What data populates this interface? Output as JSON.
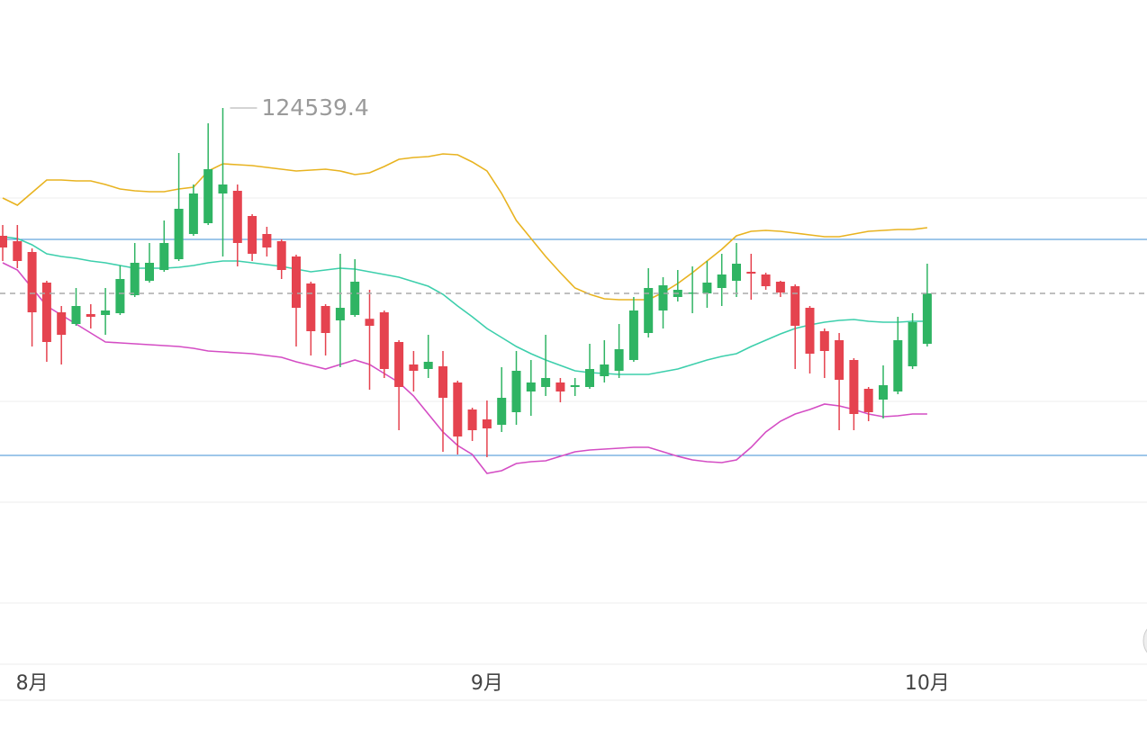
{
  "chart_data": {
    "type": "candlestick",
    "categories": [
      null,
      null,
      "8月",
      null,
      null,
      null,
      null,
      null,
      null,
      null,
      null,
      null,
      null,
      null,
      null,
      null,
      null,
      null,
      null,
      null,
      null,
      null,
      null,
      null,
      null,
      null,
      null,
      null,
      null,
      null,
      null,
      null,
      null,
      "9月",
      null,
      null,
      null,
      null,
      null,
      null,
      null,
      null,
      null,
      null,
      null,
      null,
      null,
      null,
      null,
      null,
      null,
      null,
      null,
      null,
      null,
      null,
      null,
      null,
      null,
      null,
      null,
      null,
      null,
      "10月"
    ],
    "open": [
      118150,
      117880,
      117340,
      115810,
      114325,
      113740,
      114235,
      114190,
      114280,
      115180,
      115900,
      116440,
      116980,
      118240,
      118780,
      120265,
      120400,
      119140,
      118240,
      117880,
      117115,
      115765,
      114640,
      113920,
      114190,
      114000,
      114325,
      112840,
      111715,
      111490,
      111625,
      110815,
      109465,
      108970,
      108700,
      109330,
      110365,
      110590,
      110815,
      110590,
      110590,
      111130,
      111400,
      111940,
      113290,
      114415,
      115090,
      115270,
      115270,
      115540,
      115900,
      116350,
      116215,
      115855,
      115630,
      114550,
      113380,
      112930,
      111940,
      110500,
      109960,
      110365,
      111625,
      112750
    ],
    "high": [
      118690,
      118690,
      117520,
      115900,
      114640,
      115540,
      114730,
      115540,
      116665,
      117790,
      117790,
      118915,
      122290,
      120715,
      123775,
      124539.4,
      120715,
      119230,
      118600,
      117970,
      117205,
      115855,
      114730,
      117250,
      116980,
      115450,
      114415,
      112930,
      112390,
      113200,
      112390,
      110905,
      109555,
      109915,
      111580,
      112390,
      111940,
      113200,
      111040,
      111040,
      112750,
      112930,
      113740,
      115090,
      116530,
      116080,
      116440,
      116620,
      116890,
      117250,
      117790,
      117250,
      116305,
      115900,
      115720,
      114640,
      113515,
      113290,
      112030,
      110590,
      111670,
      114100,
      114280,
      116755
    ],
    "low": [
      116890,
      116530,
      112615,
      111850,
      111715,
      113650,
      113515,
      113200,
      114190,
      115090,
      115810,
      116350,
      116890,
      118150,
      118690,
      117115,
      116620,
      116890,
      117115,
      115990,
      112615,
      112165,
      112165,
      111580,
      114100,
      110455,
      111040,
      108430,
      110365,
      111040,
      107350,
      107215,
      107890,
      107080,
      108340,
      108700,
      109150,
      110140,
      109825,
      110140,
      110500,
      110815,
      111040,
      111850,
      113065,
      113515,
      114865,
      114280,
      114550,
      114640,
      115090,
      114955,
      115450,
      115090,
      111490,
      111265,
      111040,
      108430,
      108430,
      108880,
      109015,
      110230,
      111490,
      112615
    ],
    "close": [
      117565,
      116890,
      114325,
      112840,
      113200,
      114640,
      114100,
      114415,
      115990,
      116800,
      116800,
      117790,
      119500,
      120265,
      121480,
      120715,
      117790,
      117250,
      117565,
      116440,
      114550,
      113380,
      113290,
      114550,
      115855,
      113650,
      111490,
      110590,
      111400,
      111850,
      110050,
      108115,
      108430,
      108520,
      110050,
      111400,
      110815,
      111040,
      110365,
      110680,
      111490,
      111715,
      112480,
      114415,
      115540,
      115675,
      115450,
      115315,
      115810,
      116215,
      116755,
      116260,
      115630,
      115315,
      113650,
      112255,
      112390,
      110950,
      109240,
      109330,
      110680,
      112930,
      113830,
      115270
    ],
    "up_color": "#2fb463",
    "down_color": "#e5434f",
    "lines": [
      {
        "color": "#e8b320",
        "values": [
          120040,
          119680,
          120310,
          120940,
          120940,
          120895,
          120895,
          120715,
          120490,
          120400,
          120355,
          120355,
          120490,
          120580,
          121390,
          121750,
          121705,
          121660,
          121570,
          121480,
          121390,
          121435,
          121480,
          121390,
          121210,
          121300,
          121615,
          121975,
          122065,
          122110,
          122245,
          122200,
          121840,
          121390,
          120265,
          118915,
          118015,
          117115,
          116305,
          115540,
          115225,
          115000,
          114955,
          114955,
          114955,
          115315,
          115765,
          116305,
          116890,
          117475,
          118150,
          118375,
          118420,
          118375,
          118285,
          118195,
          118105,
          118105,
          118240,
          118375,
          118420,
          118465,
          118465,
          118555
        ]
      },
      {
        "color": "#3dcfac",
        "values": [
          118105,
          118015,
          117700,
          117250,
          117115,
          117025,
          116890,
          116800,
          116665,
          116530,
          116530,
          116530,
          116575,
          116665,
          116800,
          116890,
          116890,
          116800,
          116710,
          116620,
          116485,
          116350,
          116440,
          116530,
          116485,
          116350,
          116215,
          116080,
          115855,
          115630,
          115225,
          114640,
          114100,
          113515,
          113065,
          112615,
          112255,
          111940,
          111670,
          111400,
          111310,
          111265,
          111220,
          111220,
          111220,
          111355,
          111490,
          111715,
          111940,
          112120,
          112255,
          112615,
          112930,
          113245,
          113515,
          113695,
          113830,
          113920,
          113965,
          113875,
          113830,
          113830,
          113875,
          113875
        ]
      },
      {
        "color": "#d44dc4",
        "values": [
          116800,
          116440,
          115540,
          114640,
          114190,
          113740,
          113290,
          112840,
          112795,
          112750,
          112705,
          112660,
          112615,
          112525,
          112390,
          112345,
          112300,
          112255,
          112165,
          112075,
          111850,
          111670,
          111490,
          111715,
          111940,
          111715,
          111265,
          110815,
          110140,
          109240,
          108340,
          107665,
          107215,
          106270,
          106405,
          106765,
          106855,
          106900,
          107125,
          107350,
          107440,
          107485,
          107530,
          107575,
          107575,
          107350,
          107125,
          106945,
          106855,
          106810,
          106945,
          107575,
          108340,
          108880,
          109240,
          109465,
          109735,
          109645,
          109465,
          109240,
          109105,
          109150,
          109240,
          109240
        ]
      }
    ],
    "ylim": [
      96640,
      129940
    ],
    "last_price_line": true
  }
}
